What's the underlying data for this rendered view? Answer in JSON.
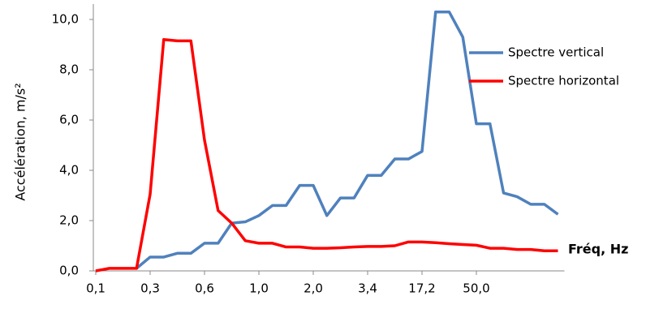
{
  "chart_data": {
    "type": "line",
    "y_label": "Accélération, m/s²",
    "x_annotation": "Fréq, Hz",
    "categories": [
      "0,1",
      null,
      null,
      null,
      "0,3",
      null,
      null,
      null,
      "0,6",
      null,
      null,
      null,
      "1,0",
      null,
      null,
      null,
      "2,0",
      null,
      null,
      null,
      "3,4",
      null,
      null,
      null,
      "17,2",
      null,
      null,
      null,
      "50,0",
      null,
      null,
      null,
      null,
      null,
      null
    ],
    "series": [
      {
        "name": "Spectre vertical",
        "color": "#4f81bd",
        "values": [
          null,
          null,
          null,
          0.1,
          0.55,
          0.55,
          0.7,
          0.7,
          1.1,
          1.1,
          1.9,
          1.95,
          2.2,
          2.6,
          2.6,
          3.4,
          3.4,
          2.2,
          2.9,
          2.9,
          3.8,
          3.8,
          4.45,
          4.45,
          4.75,
          10.3,
          10.3,
          9.3,
          5.85,
          5.85,
          3.1,
          2.95,
          2.65,
          2.65,
          2.25
        ]
      },
      {
        "name": "Spectre horizontal",
        "color": "#ff0000",
        "values": [
          0.0,
          0.1,
          0.1,
          0.1,
          3.05,
          9.2,
          9.15,
          9.15,
          5.2,
          2.4,
          1.9,
          1.2,
          1.1,
          1.1,
          0.95,
          0.95,
          0.9,
          0.9,
          0.92,
          0.95,
          0.97,
          0.97,
          1.0,
          1.15,
          1.15,
          1.12,
          1.08,
          1.05,
          1.02,
          0.9,
          0.9,
          0.85,
          0.85,
          0.8,
          0.8
        ]
      }
    ],
    "ylim": [
      0,
      10.5
    ],
    "yticks": [
      {
        "value": 0,
        "label": "0,0"
      },
      {
        "value": 2,
        "label": "2,0"
      },
      {
        "value": 4,
        "label": "4,0"
      },
      {
        "value": 6,
        "label": "6,0"
      },
      {
        "value": 8,
        "label": "8,0"
      },
      {
        "value": 10,
        "label": "10,0"
      }
    ],
    "grid": false
  }
}
